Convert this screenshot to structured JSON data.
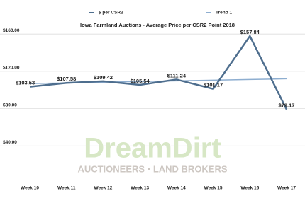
{
  "chart_data": {
    "type": "line",
    "title": "Iowa Farmland Auctions - Average Price per CSR2 Point 2018",
    "categories": [
      "Week 10",
      "Week 11",
      "Week 12",
      "Week 13",
      "Week 14",
      "Week 15",
      "Week 16",
      "Week 17"
    ],
    "series": [
      {
        "name": "$ per CSR2",
        "color": "#4e6e8e",
        "values": [
          103.53,
          107.58,
          109.42,
          105.54,
          111.24,
          101.17,
          157.84,
          79.17
        ],
        "value_labels": [
          "$103.53",
          "$107.58",
          "$109.42",
          "$105.54",
          "$111.24",
          "$101.17",
          "$157.84",
          "$79.17"
        ]
      },
      {
        "name": "Trend 1",
        "color": "#8eaed0",
        "values": [
          106.9,
          107.6,
          108.3,
          109.1,
          109.8,
          110.5,
          111.3,
          112.0
        ]
      }
    ],
    "ylim": [
      0,
      170
    ],
    "yticks": [
      {
        "value": 40,
        "label": "$40.00"
      },
      {
        "value": 80,
        "label": "$80.00"
      },
      {
        "value": 120,
        "label": "$120.00"
      },
      {
        "value": 160,
        "label": "$160.00"
      }
    ],
    "grid": true
  },
  "watermark": {
    "brand": "DreamDirt",
    "tagline": "AUCTIONEERS • LAND BROKERS"
  }
}
